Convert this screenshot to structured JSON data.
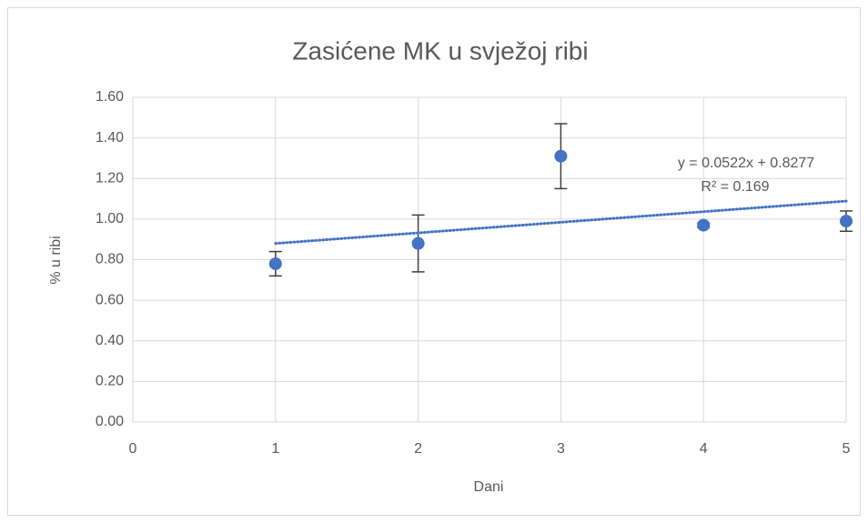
{
  "chart_data": {
    "type": "scatter",
    "title": "Zasićene MK u svježoj ribi",
    "x_label": "Dani",
    "y_label": "% u ribi",
    "series": [
      {
        "color": "#4472c4",
        "x": [
          1,
          2,
          3,
          4,
          5
        ],
        "values": [
          0.78,
          0.88,
          1.31,
          0.97,
          0.99
        ],
        "errors": [
          0.06,
          0.14,
          0.16,
          0.01,
          0.05
        ]
      }
    ],
    "trendline": {
      "color": "#4472c4",
      "slope": 0.0522,
      "intercept": 0.8277,
      "equation": "y = 0.0522x + 0.8277",
      "r2": "R² = 0.169"
    },
    "xlim": [
      0,
      5
    ],
    "xticks": [
      0,
      1,
      2,
      3,
      4,
      5
    ],
    "ylim": [
      0,
      1.6
    ],
    "yticks": [
      {
        "value": 0,
        "label": "0.00"
      },
      {
        "value": 0.2,
        "label": "0.20"
      },
      {
        "value": 0.4,
        "label": "0.40"
      },
      {
        "value": 0.6,
        "label": "0.60"
      },
      {
        "value": 0.8,
        "label": "0.80"
      },
      {
        "value": 1,
        "label": "1.00"
      },
      {
        "value": 1.2,
        "label": "1.20"
      },
      {
        "value": 1.4,
        "label": "1.40"
      },
      {
        "value": 1.6,
        "label": "1.60"
      }
    ],
    "grid": true
  }
}
